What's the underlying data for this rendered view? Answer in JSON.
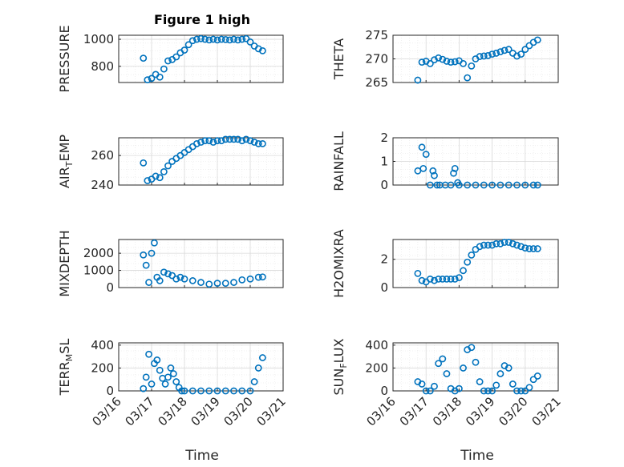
{
  "figure_title": "Figure 1 high",
  "colors": {
    "marker": "#0072BD",
    "axis": "#262626"
  },
  "chart_data": [
    {
      "type": "scatter",
      "ylabel": "PRESSURE",
      "ylim": [
        680,
        1030
      ],
      "yticks": [
        800,
        1000
      ],
      "x": [
        "03/16 18:00",
        "03/16 21:00",
        "03/17 00:00",
        "03/17 03:00",
        "03/17 06:00",
        "03/17 09:00",
        "03/17 12:00",
        "03/17 15:00",
        "03/17 18:00",
        "03/17 21:00",
        "03/18 00:00",
        "03/18 03:00",
        "03/18 06:00",
        "03/18 09:00",
        "03/18 12:00",
        "03/18 15:00",
        "03/18 18:00",
        "03/18 21:00",
        "03/19 00:00",
        "03/19 03:00",
        "03/19 06:00",
        "03/19 09:00",
        "03/19 12:00",
        "03/19 15:00",
        "03/19 18:00",
        "03/19 21:00",
        "03/20 00:00",
        "03/20 03:00",
        "03/20 06:00",
        "03/20 09:00"
      ],
      "values": [
        860,
        700,
        710,
        740,
        720,
        780,
        840,
        850,
        870,
        900,
        920,
        960,
        990,
        1000,
        1005,
        1000,
        995,
        1000,
        995,
        1000,
        998,
        995,
        1000,
        995,
        1000,
        1005,
        980,
        950,
        930,
        915
      ]
    },
    {
      "type": "scatter",
      "ylabel": "THETA",
      "ylim": [
        265,
        275
      ],
      "yticks": [
        265,
        270,
        275
      ],
      "x": [
        "03/16 18:00",
        "03/16 21:00",
        "03/17 00:00",
        "03/17 03:00",
        "03/17 06:00",
        "03/17 09:00",
        "03/17 12:00",
        "03/17 15:00",
        "03/17 18:00",
        "03/17 21:00",
        "03/18 00:00",
        "03/18 03:00",
        "03/18 06:00",
        "03/18 09:00",
        "03/18 12:00",
        "03/18 15:00",
        "03/18 18:00",
        "03/18 21:00",
        "03/19 00:00",
        "03/19 03:00",
        "03/19 06:00",
        "03/19 09:00",
        "03/19 12:00",
        "03/19 15:00",
        "03/19 18:00",
        "03/19 21:00",
        "03/20 00:00",
        "03/20 03:00",
        "03/20 06:00",
        "03/20 09:00"
      ],
      "values": [
        265.5,
        269.3,
        269.5,
        269.0,
        269.8,
        270.2,
        269.9,
        269.5,
        269.3,
        269.4,
        269.6,
        269.0,
        266.0,
        268.5,
        270.0,
        270.5,
        270.6,
        270.7,
        271.0,
        271.2,
        271.5,
        271.8,
        272.0,
        271.2,
        270.6,
        271.0,
        272.0,
        272.8,
        273.5,
        274.0
      ]
    },
    {
      "type": "scatter",
      "ylabel": "AIR_TEMP",
      "ylim": [
        240,
        272
      ],
      "yticks": [
        240,
        260
      ],
      "x": [
        "03/16 18:00",
        "03/16 21:00",
        "03/17 00:00",
        "03/17 03:00",
        "03/17 06:00",
        "03/17 09:00",
        "03/17 12:00",
        "03/17 15:00",
        "03/17 18:00",
        "03/17 21:00",
        "03/18 00:00",
        "03/18 03:00",
        "03/18 06:00",
        "03/18 09:00",
        "03/18 12:00",
        "03/18 15:00",
        "03/18 18:00",
        "03/18 21:00",
        "03/19 00:00",
        "03/19 03:00",
        "03/19 06:00",
        "03/19 09:00",
        "03/19 12:00",
        "03/19 15:00",
        "03/19 18:00",
        "03/19 21:00",
        "03/20 00:00",
        "03/20 03:00",
        "03/20 06:00",
        "03/20 09:00"
      ],
      "values": [
        255,
        243,
        244,
        246,
        245,
        249,
        253,
        256,
        258,
        260,
        262,
        264,
        266,
        268,
        269,
        270,
        270,
        269,
        270,
        270,
        271,
        271,
        271,
        271,
        270,
        271,
        270,
        269,
        268,
        268
      ]
    },
    {
      "type": "scatter",
      "ylabel": "RAINFALL",
      "ylim": [
        0,
        2
      ],
      "yticks": [
        0,
        1,
        2
      ],
      "x": [
        "03/16 18:00",
        "03/16 21:00",
        "03/16 22:00",
        "03/17 00:00",
        "03/17 03:00",
        "03/17 05:00",
        "03/17 06:00",
        "03/17 08:00",
        "03/17 10:00",
        "03/17 14:00",
        "03/17 18:00",
        "03/17 20:00",
        "03/17 21:00",
        "03/17 23:00",
        "03/18 00:00",
        "03/18 06:00",
        "03/18 12:00",
        "03/18 18:00",
        "03/19 00:00",
        "03/19 06:00",
        "03/19 12:00",
        "03/19 18:00",
        "03/20 00:00",
        "03/20 06:00",
        "03/20 09:00"
      ],
      "values": [
        0.6,
        1.6,
        0.7,
        1.3,
        0,
        0.6,
        0.4,
        0,
        0,
        0,
        0,
        0.5,
        0.7,
        0.1,
        0,
        0,
        0,
        0,
        0,
        0,
        0,
        0,
        0,
        0,
        0
      ]
    },
    {
      "type": "scatter",
      "ylabel": "MIXDEPTH",
      "ylim": [
        0,
        2800
      ],
      "yticks": [
        0,
        1000,
        2000
      ],
      "x": [
        "03/16 18:00",
        "03/16 20:00",
        "03/16 22:00",
        "03/17 00:00",
        "03/17 02:00",
        "03/17 04:00",
        "03/17 06:00",
        "03/17 09:00",
        "03/17 12:00",
        "03/17 15:00",
        "03/17 18:00",
        "03/17 21:00",
        "03/18 00:00",
        "03/18 06:00",
        "03/18 12:00",
        "03/18 18:00",
        "03/19 00:00",
        "03/19 06:00",
        "03/19 12:00",
        "03/19 18:00",
        "03/20 00:00",
        "03/20 06:00",
        "03/20 09:00"
      ],
      "values": [
        1900,
        1300,
        300,
        2000,
        2600,
        600,
        400,
        900,
        800,
        700,
        500,
        600,
        500,
        400,
        300,
        200,
        250,
        250,
        300,
        450,
        500,
        600,
        620
      ]
    },
    {
      "type": "scatter",
      "ylabel": "H2OMIXRA",
      "ylim": [
        0,
        3.4
      ],
      "yticks": [
        0,
        2
      ],
      "x": [
        "03/16 18:00",
        "03/16 21:00",
        "03/17 00:00",
        "03/17 03:00",
        "03/17 06:00",
        "03/17 09:00",
        "03/17 12:00",
        "03/17 15:00",
        "03/17 18:00",
        "03/17 21:00",
        "03/18 00:00",
        "03/18 03:00",
        "03/18 06:00",
        "03/18 09:00",
        "03/18 12:00",
        "03/18 15:00",
        "03/18 18:00",
        "03/18 21:00",
        "03/19 00:00",
        "03/19 03:00",
        "03/19 06:00",
        "03/19 09:00",
        "03/19 12:00",
        "03/19 15:00",
        "03/19 18:00",
        "03/19 21:00",
        "03/20 00:00",
        "03/20 03:00",
        "03/20 06:00",
        "03/20 09:00"
      ],
      "values": [
        1.0,
        0.5,
        0.4,
        0.6,
        0.5,
        0.6,
        0.6,
        0.6,
        0.6,
        0.6,
        0.7,
        1.2,
        1.8,
        2.3,
        2.7,
        2.9,
        3.0,
        3.0,
        3.0,
        3.1,
        3.1,
        3.2,
        3.2,
        3.1,
        3.0,
        2.9,
        2.8,
        2.75,
        2.75,
        2.75
      ]
    },
    {
      "type": "scatter",
      "ylabel": "TERR_MSL",
      "ylim": [
        0,
        420
      ],
      "yticks": [
        0,
        200,
        400
      ],
      "x": [
        "03/16 18:00",
        "03/16 20:00",
        "03/16 22:00",
        "03/17 00:00",
        "03/17 02:00",
        "03/17 04:00",
        "03/17 06:00",
        "03/17 08:00",
        "03/17 10:00",
        "03/17 12:00",
        "03/17 14:00",
        "03/17 16:00",
        "03/17 18:00",
        "03/17 20:00",
        "03/17 22:00",
        "03/18 00:00",
        "03/18 06:00",
        "03/18 12:00",
        "03/18 18:00",
        "03/19 00:00",
        "03/19 06:00",
        "03/19 12:00",
        "03/19 18:00",
        "03/20 00:00",
        "03/20 03:00",
        "03/20 06:00",
        "03/20 09:00"
      ],
      "values": [
        20,
        120,
        320,
        60,
        240,
        270,
        180,
        110,
        60,
        120,
        200,
        150,
        80,
        30,
        0,
        0,
        0,
        0,
        0,
        0,
        0,
        0,
        0,
        0,
        80,
        200,
        290
      ]
    },
    {
      "type": "scatter",
      "ylabel": "SUN_FLUX",
      "ylim": [
        0,
        420
      ],
      "yticks": [
        0,
        200,
        400
      ],
      "x": [
        "03/16 18:00",
        "03/16 21:00",
        "03/17 00:00",
        "03/17 03:00",
        "03/17 06:00",
        "03/17 09:00",
        "03/17 12:00",
        "03/17 15:00",
        "03/17 18:00",
        "03/17 21:00",
        "03/18 00:00",
        "03/18 03:00",
        "03/18 06:00",
        "03/18 09:00",
        "03/18 12:00",
        "03/18 15:00",
        "03/18 18:00",
        "03/18 21:00",
        "03/19 00:00",
        "03/19 03:00",
        "03/19 06:00",
        "03/19 09:00",
        "03/19 12:00",
        "03/19 15:00",
        "03/19 18:00",
        "03/19 21:00",
        "03/20 00:00",
        "03/20 03:00",
        "03/20 06:00",
        "03/20 09:00"
      ],
      "values": [
        80,
        60,
        0,
        0,
        40,
        240,
        280,
        150,
        20,
        0,
        20,
        200,
        360,
        380,
        250,
        80,
        0,
        0,
        0,
        50,
        150,
        220,
        200,
        60,
        0,
        0,
        0,
        30,
        100,
        130
      ]
    }
  ],
  "x_axis": {
    "ticks": [
      "03/16",
      "03/17",
      "03/18",
      "03/19",
      "03/20",
      "03/21"
    ],
    "start": "03/16",
    "label": "Time"
  }
}
